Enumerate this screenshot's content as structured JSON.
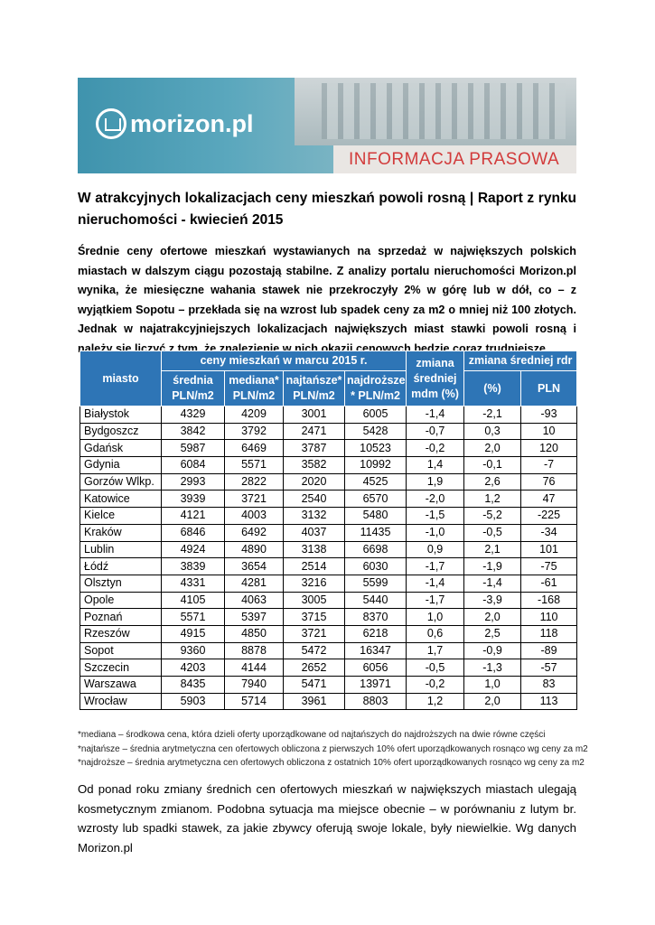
{
  "banner": {
    "logo": "morizon.pl",
    "label": "INFORMACJA PRASOWA"
  },
  "title": "W atrakcyjnych lokalizacjach ceny mieszkań powoli rosną | Raport z rynku nieruchomości - kwiecień 2015",
  "lead": "Średnie ceny ofertowe mieszkań wystawianych na sprzedaż w największych polskich miastach w dalszym ciągu pozostają stabilne. Z analizy portalu nieruchomości Morizon.pl wynika, że miesięczne wahania stawek nie przekroczyły 2% w górę lub w dół, co – z wyjątkiem Sopotu – przekłada się na wzrost lub spadek ceny za m2 o mniej niż 100 złotych. Jednak w najatrakcyjniejszych lokalizacjach największych miast stawki powoli rosną i należy się liczyć z tym, że znalezienie w nich okazji cenowych będzie coraz trudniejsze.",
  "table": {
    "city_header": "miasto",
    "price_group": "ceny mieszkań w marcu 2015 r.",
    "price_columns": [
      "średnia PLN/m2",
      "mediana* PLN/m2",
      "najtańsze* PLN/m2",
      "najdroższe * PLN/m2"
    ],
    "mdm_header": "zmiana średniej mdm (%)",
    "rdr_group": "zmiana średniej rdr",
    "rdr_columns": [
      "(%)",
      "PLN"
    ],
    "rows": [
      [
        "Białystok",
        "4329",
        "4209",
        "3001",
        "6005",
        "-1,4",
        "-2,1",
        "-93"
      ],
      [
        "Bydgoszcz",
        "3842",
        "3792",
        "2471",
        "5428",
        "-0,7",
        "0,3",
        "10"
      ],
      [
        "Gdańsk",
        "5987",
        "6469",
        "3787",
        "10523",
        "-0,2",
        "2,0",
        "120"
      ],
      [
        "Gdynia",
        "6084",
        "5571",
        "3582",
        "10992",
        "1,4",
        "-0,1",
        "-7"
      ],
      [
        "Gorzów Wlkp.",
        "2993",
        "2822",
        "2020",
        "4525",
        "1,9",
        "2,6",
        "76"
      ],
      [
        "Katowice",
        "3939",
        "3721",
        "2540",
        "6570",
        "-2,0",
        "1,2",
        "47"
      ],
      [
        "Kielce",
        "4121",
        "4003",
        "3132",
        "5480",
        "-1,5",
        "-5,2",
        "-225"
      ],
      [
        "Kraków",
        "6846",
        "6492",
        "4037",
        "11435",
        "-1,0",
        "-0,5",
        "-34"
      ],
      [
        "Lublin",
        "4924",
        "4890",
        "3138",
        "6698",
        "0,9",
        "2,1",
        "101"
      ],
      [
        "Łódź",
        "3839",
        "3654",
        "2514",
        "6030",
        "-1,7",
        "-1,9",
        "-75"
      ],
      [
        "Olsztyn",
        "4331",
        "4281",
        "3216",
        "5599",
        "-1,4",
        "-1,4",
        "-61"
      ],
      [
        "Opole",
        "4105",
        "4063",
        "3005",
        "5440",
        "-1,7",
        "-3,9",
        "-168"
      ],
      [
        "Poznań",
        "5571",
        "5397",
        "3715",
        "8370",
        "1,0",
        "2,0",
        "110"
      ],
      [
        "Rzeszów",
        "4915",
        "4850",
        "3721",
        "6218",
        "0,6",
        "2,5",
        "118"
      ],
      [
        "Sopot",
        "9360",
        "8878",
        "5472",
        "16347",
        "1,7",
        "-0,9",
        "-89"
      ],
      [
        "Szczecin",
        "4203",
        "4144",
        "2652",
        "6056",
        "-0,5",
        "-1,3",
        "-57"
      ],
      [
        "Warszawa",
        "8435",
        "7940",
        "5471",
        "13971",
        "-0,2",
        "1,0",
        "83"
      ],
      [
        "Wrocław",
        "5903",
        "5714",
        "3961",
        "8803",
        "1,2",
        "2,0",
        "113"
      ]
    ]
  },
  "footnotes": [
    "*mediana – środkowa cena, która dzieli oferty uporządkowane od najtańszych do najdroższych na dwie równe części",
    "*najtańsze – średnia arytmetyczna cen ofertowych obliczona z pierwszych 10% ofert uporządkowanych rosnąco wg ceny za m2",
    "*najdroższe – średnia arytmetyczna cen ofertowych obliczona z ostatnich 10% ofert uporządkowanych rosnąco wg ceny za m2"
  ],
  "body": "Od ponad roku zmiany średnich cen ofertowych mieszkań w największych miastach ulegają kosmetycznym zmianom. Podobna sytuacja ma miejsce obecnie – w porównaniu z lutym br. wzrosty lub spadki stawek, za jakie zbywcy oferują swoje lokale, były niewielkie. Wg danych Morizon.pl"
}
